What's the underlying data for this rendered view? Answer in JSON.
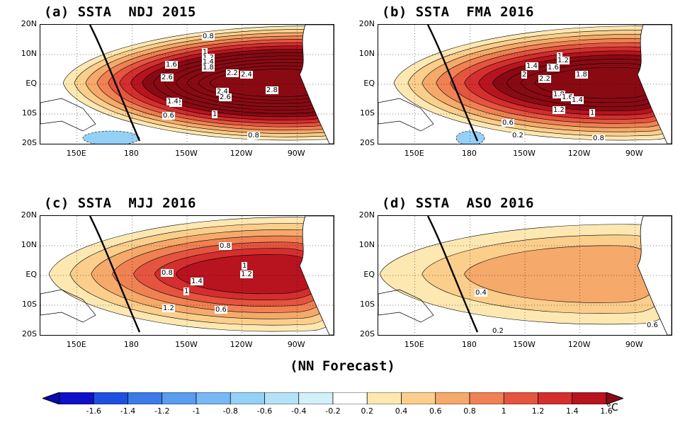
{
  "footer_label": "(NN Forecast)",
  "unit": "°C",
  "lat_labels": [
    "20N",
    "10N",
    "EQ",
    "10S",
    "20S"
  ],
  "lon_labels": [
    "150E",
    "180",
    "150W",
    "120W",
    "90W"
  ],
  "colorbar": {
    "ticks": [
      "-1.6",
      "-1.4",
      "-1.2",
      "-1",
      "-0.8",
      "-0.6",
      "-0.4",
      "-0.2",
      "0.2",
      "0.4",
      "0.6",
      "0.8",
      "1",
      "1.2",
      "1.4",
      "1.6"
    ],
    "colors": [
      "#1010c8",
      "#1f4fe0",
      "#3a7be8",
      "#5a9cf0",
      "#78b8f5",
      "#95d0f7",
      "#b4e3f8",
      "#d2f0f9",
      "#ffffff",
      "#fde8b2",
      "#fbce8c",
      "#f5a96a",
      "#f08152",
      "#e5543f",
      "#d42e2e",
      "#b8141f"
    ],
    "under_color": "#0a0ab0",
    "over_color": "#8a0a14"
  },
  "panels": [
    {
      "id": "a",
      "title": "(a) SSTA  NDJ 2015",
      "contour_labels": [
        "0.8",
        "1",
        "1.2",
        "1.4",
        "1.6",
        "1.8",
        "2.2",
        "2.4",
        "2.6",
        "2.4",
        "2.6",
        "2.8",
        "1.2",
        "1.4",
        "0.6",
        "1",
        "0.8"
      ]
    },
    {
      "id": "b",
      "title": "(b) SSTA  FMA 2016",
      "contour_labels": [
        "1",
        "1.2",
        "1.4",
        "1.6",
        "2",
        "2.2",
        "1.8",
        "1.8",
        "1.6",
        "1.4",
        "1.2",
        "0.6",
        "1",
        "0.2",
        "0.8"
      ]
    },
    {
      "id": "c",
      "title": "(c) SSTA  MJJ 2016",
      "contour_labels": [
        "0.8",
        "1",
        "1.2",
        "1.4",
        "1",
        "1.2",
        "0.6",
        "0.8"
      ]
    },
    {
      "id": "d",
      "title": "(d) SSTA  ASO 2016",
      "contour_labels": [
        "0.4",
        "0.6",
        "0.2"
      ]
    }
  ],
  "map_data": {
    "type": "sst_anomaly_map",
    "region": "tropical Pacific 130E-70W, 20S-20N",
    "levels": [
      -1.6,
      -1.4,
      -1.2,
      -1,
      -0.8,
      -0.6,
      -0.4,
      -0.2,
      0.2,
      0.4,
      0.6,
      0.8,
      1,
      1.2,
      1.4,
      1.6
    ],
    "panel_peak_anomaly": [
      2.8,
      2.2,
      1.4,
      0.6
    ]
  }
}
